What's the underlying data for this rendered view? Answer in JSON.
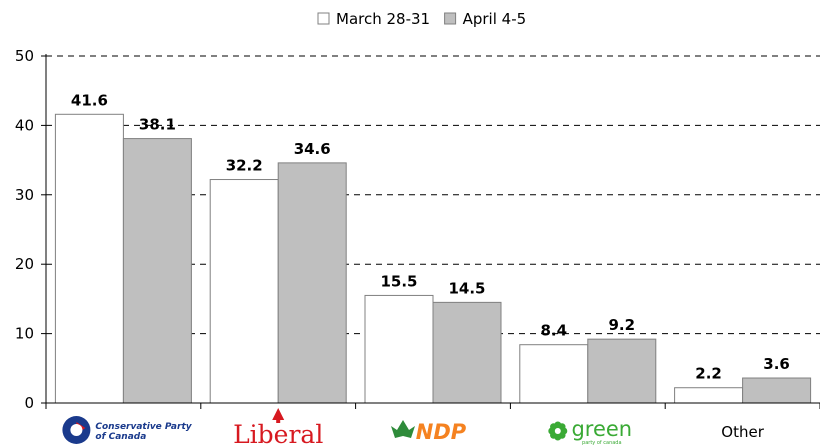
{
  "chart_data": {
    "type": "bar",
    "categories": [
      "Conservative Party of Canada",
      "Liberal",
      "NDP",
      "green",
      "Other"
    ],
    "series": [
      {
        "name": "March 28-31",
        "values": [
          41.6,
          32.2,
          15.5,
          8.4,
          2.2
        ],
        "color": "#ffffff"
      },
      {
        "name": "April 4-5",
        "values": [
          38.1,
          34.6,
          14.5,
          9.2,
          3.6
        ],
        "color": "#bfbfbf"
      }
    ],
    "ylim": [
      0,
      50
    ],
    "yticks": [
      0,
      10,
      20,
      30,
      40,
      50
    ],
    "grid": true,
    "legend_position": "top-center",
    "logos": {
      "conservative": {
        "line1": "Conservative Party",
        "line2": "of Canada",
        "color": "#1a3a8c"
      },
      "liberal": {
        "text": "Liberal",
        "color": "#d71920"
      },
      "ndp": {
        "text": "NDP",
        "color": "#f58220",
        "leaf_color": "#2e8b3a"
      },
      "green": {
        "text": "green",
        "tagline": "party of canada",
        "color": "#3aaa35"
      },
      "other": {
        "text": "Other"
      }
    }
  }
}
